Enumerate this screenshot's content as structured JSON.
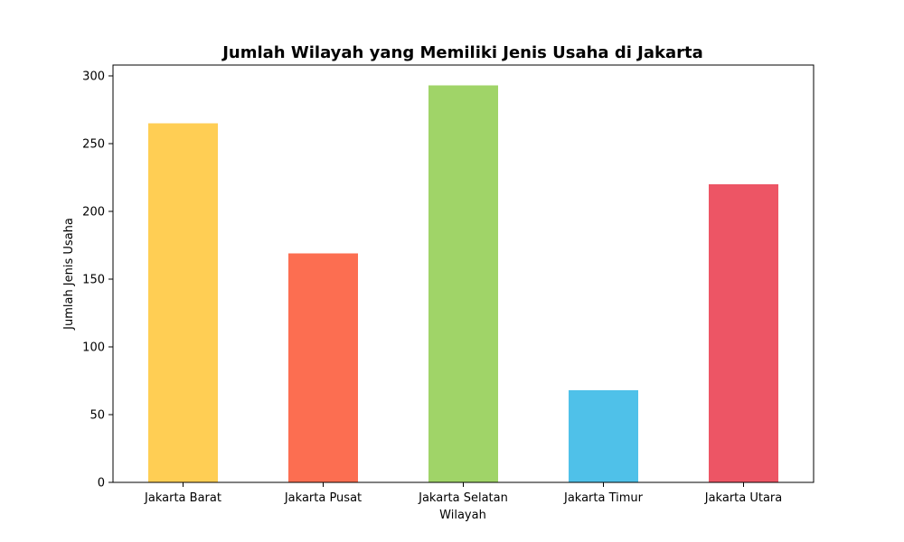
{
  "chart_data": {
    "type": "bar",
    "title": "Jumlah Wilayah yang Memiliki Jenis Usaha di Jakarta",
    "xlabel": "Wilayah",
    "ylabel": "Jumlah Jenis Usaha",
    "categories": [
      "Jakarta Barat",
      "Jakarta Pusat",
      "Jakarta Selatan",
      "Jakarta Timur",
      "Jakarta Utara"
    ],
    "values": [
      265,
      169,
      293,
      68,
      220
    ],
    "colors": [
      "#FFCE54",
      "#FC6E51",
      "#A0D468",
      "#4FC1E9",
      "#ED5565"
    ],
    "ylim": [
      0,
      308
    ],
    "yticks": [
      0,
      50,
      100,
      150,
      200,
      250,
      300
    ],
    "grid": false,
    "legend": "none"
  }
}
